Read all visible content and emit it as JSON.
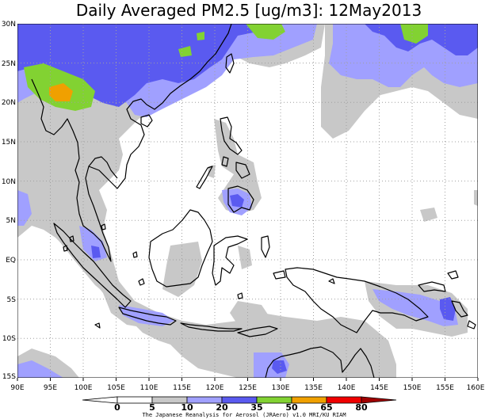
{
  "title": "Daily Averaged PM2.5 [ug/m3]: 12May2013",
  "credit": "The Japanese Reanalysis for Aerosol (JRAero) v1.0 MRI/KU RIAM",
  "lon_labels": [
    "90E",
    "95E",
    "100E",
    "105E",
    "110E",
    "115E",
    "120E",
    "125E",
    "130E",
    "135E",
    "140E",
    "145E",
    "150E",
    "155E",
    "160E"
  ],
  "lat_labels": [
    "30N",
    "25N",
    "20N",
    "15N",
    "10N",
    "5N",
    "EQ",
    "5S",
    "10S",
    "15S"
  ],
  "colorbar": {
    "ticks": [
      "0",
      "5",
      "10",
      "20",
      "35",
      "50",
      "65",
      "80"
    ],
    "colors": [
      "#ffffff",
      "#ffffff",
      "#c8c8c8",
      "#a0a0ff",
      "#5a5af0",
      "#82d232",
      "#f0a000",
      "#f00000",
      "#a00000"
    ]
  },
  "palette": {
    "gray": "#c8c8c8",
    "lightblue": "#a0a0ff",
    "blue": "#5a5af0",
    "green": "#82d232",
    "orange": "#f0a000",
    "coast": "#000000",
    "grid": "#a0a0a0"
  }
}
